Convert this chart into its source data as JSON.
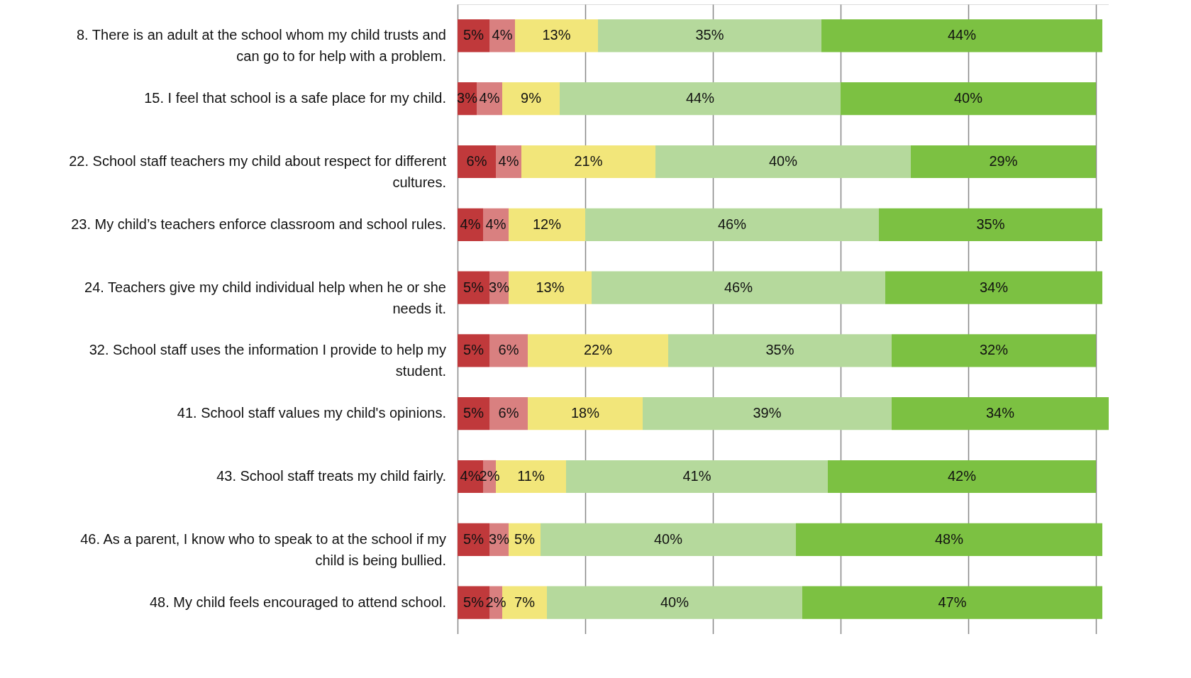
{
  "chart_data": {
    "type": "bar",
    "orientation": "horizontal",
    "stacked": true,
    "grid": "x",
    "tick_labels": "y",
    "categories": [
      "8.  There is an adult at the school whom my child trusts and can go to for help with a problem.",
      "15.  I feel that school is a safe place for my child.",
      "22.  School staff teachers my child about respect for different cultures.",
      "23.  My child’s teachers enforce classroom and school rules.",
      "24.  Teachers give my child individual help when he or she needs it.",
      "32.  School staff uses the information I provide to help my student.",
      "41. School staff values my child's opinions.",
      "43.  School staff treats my child fairly.",
      "46.  As a parent, I know who to speak to at the school if my child is being bullied.",
      "48.  My child feels encouraged to attend school."
    ],
    "series": [
      {
        "color": "#c0393b",
        "values": [
          5,
          3,
          6,
          4,
          5,
          5,
          5,
          4,
          5,
          5
        ],
        "value_labels": [
          "5%",
          "3%",
          "6%",
          "4%",
          "5%",
          "5%",
          "5%",
          "4%",
          "5%",
          "5%"
        ]
      },
      {
        "color": "#d98080",
        "values": [
          4,
          4,
          4,
          4,
          3,
          6,
          6,
          2,
          3,
          2
        ],
        "value_labels": [
          "4%",
          "4%",
          "4%",
          "4%",
          "3%",
          "6%",
          "6%",
          "2%",
          "3%",
          "2%"
        ]
      },
      {
        "color": "#f2e67a",
        "values": [
          13,
          9,
          21,
          12,
          13,
          22,
          18,
          11,
          5,
          7
        ],
        "value_labels": [
          "13%",
          "9%",
          "21%",
          "12%",
          "13%",
          "22%",
          "18%",
          "11%",
          "5%",
          "7%"
        ]
      },
      {
        "color": "#b5d99c",
        "values": [
          35,
          44,
          40,
          46,
          46,
          35,
          39,
          41,
          40,
          40
        ],
        "value_labels": [
          "35%",
          "44%",
          "40%",
          "46%",
          "46%",
          "35%",
          "39%",
          "41%",
          "40%",
          "40%"
        ]
      },
      {
        "color": "#7cc142",
        "values": [
          44,
          40,
          29,
          35,
          34,
          32,
          34,
          42,
          48,
          47
        ],
        "value_labels": [
          "44%",
          "40%",
          "29%",
          "35%",
          "34%",
          "32%",
          "34%",
          "42%",
          "48%",
          "47%"
        ]
      }
    ]
  }
}
